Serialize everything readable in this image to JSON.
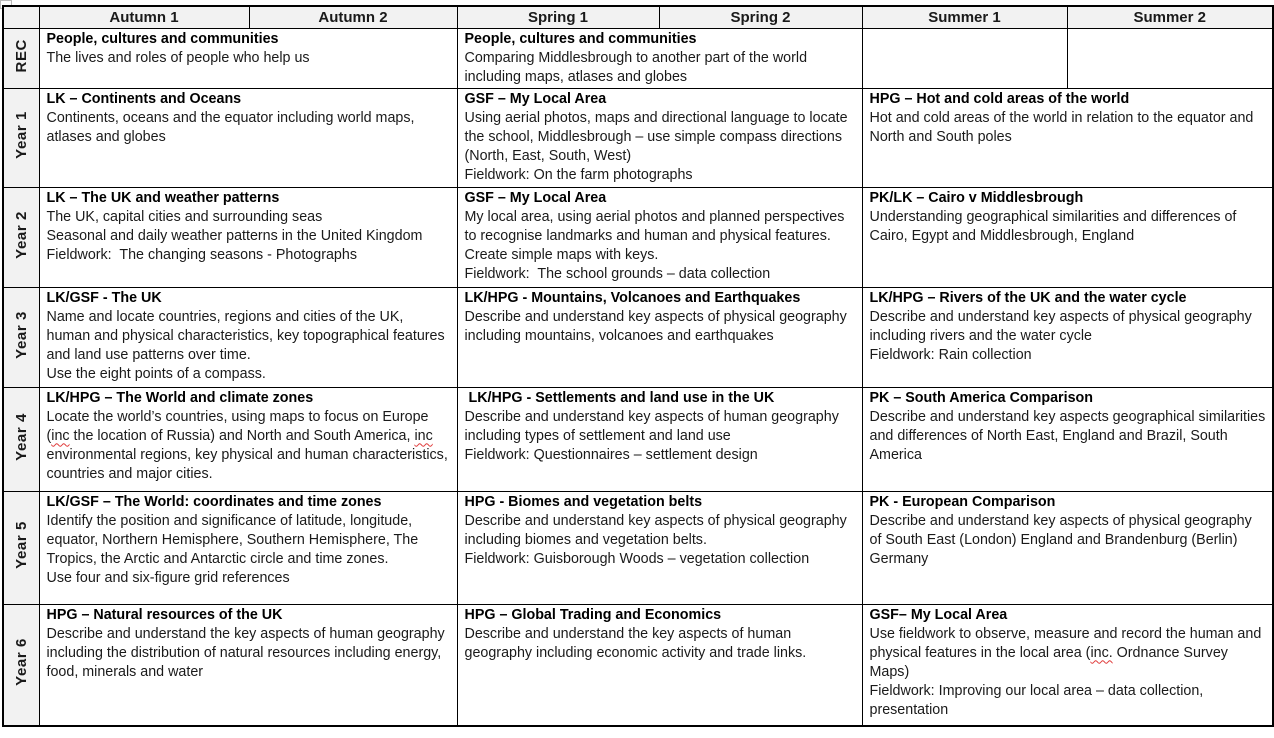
{
  "colors": {
    "header_bg": "#f2f2f2",
    "border": "#000000",
    "squiggle": "#e03b3b"
  },
  "spellcheck_flagged_word": "inc",
  "table": {
    "terms": [
      "Autumn 1",
      "Autumn 2",
      "Spring 1",
      "Spring 2",
      "Summer 1",
      "Summer 2"
    ],
    "rows": [
      {
        "year": "REC",
        "cells": [
          {
            "span": 2,
            "title": "People, cultures and communities",
            "lines": [
              "The lives and roles of people who help us"
            ]
          },
          {
            "span": 2,
            "title": "People, cultures and communities",
            "lines": [
              "Comparing Middlesbrough to another part of the world including maps, atlases and globes"
            ]
          },
          {
            "span": 1,
            "title": "",
            "lines": []
          },
          {
            "span": 1,
            "title": "",
            "lines": []
          }
        ]
      },
      {
        "year": "Year 1",
        "cells": [
          {
            "span": 2,
            "title": "LK – Continents and Oceans",
            "lines": [
              "Continents, oceans and the equator including world maps, atlases and globes"
            ]
          },
          {
            "span": 2,
            "title": "GSF – My Local Area",
            "lines": [
              "Using aerial photos, maps and directional language to locate the school, Middlesbrough – use simple compass directions (North, East, South, West)",
              "Fieldwork: On the farm photographs"
            ]
          },
          {
            "span": 2,
            "title": "HPG – Hot and cold areas of the world",
            "lines": [
              "Hot and cold areas of the world in relation to the equator and North and South poles"
            ]
          }
        ]
      },
      {
        "year": "Year 2",
        "cells": [
          {
            "span": 2,
            "title": "LK – The UK and weather patterns",
            "lines": [
              "The UK, capital cities and surrounding seas",
              "Seasonal and daily weather patterns in the United Kingdom",
              "Fieldwork:  The changing seasons - Photographs"
            ]
          },
          {
            "span": 2,
            "title": "GSF – My Local Area",
            "lines": [
              "My local area, using aerial photos and planned perspectives to recognise landmarks and human and physical features. Create simple maps with keys.",
              "Fieldwork:  The school grounds – data collection"
            ]
          },
          {
            "span": 2,
            "title": "PK/LK – Cairo v Middlesbrough",
            "lines": [
              "Understanding geographical similarities and differences of Cairo, Egypt and Middlesbrough, England"
            ]
          }
        ]
      },
      {
        "year": "Year 3",
        "cells": [
          {
            "span": 2,
            "title": "LK/GSF - The UK",
            "lines": [
              "Name and locate countries, regions and cities of the UK, human and physical characteristics, key topographical features and land use patterns over time.",
              "Use the eight points of a compass."
            ]
          },
          {
            "span": 2,
            "title": "LK/HPG - Mountains, Volcanoes and Earthquakes",
            "lines": [
              "Describe and understand key aspects of physical geography including mountains, volcanoes and earthquakes"
            ]
          },
          {
            "span": 2,
            "title": "LK/HPG – Rivers of the UK and the water cycle",
            "lines": [
              "Describe and understand key aspects of physical geography including rivers and the water cycle",
              "Fieldwork: Rain collection"
            ]
          }
        ]
      },
      {
        "year": "Year 4",
        "cells": [
          {
            "span": 2,
            "title": "LK/HPG – The World and climate zones",
            "lines": [
              "Locate the world’s countries, using maps to focus on Europe (inc the location of Russia) and North and South America, inc environmental regions, key physical and human characteristics, countries and major cities."
            ]
          },
          {
            "span": 2,
            "title": " LK/HPG - Settlements and land use in the UK",
            "lines": [
              "Describe and understand key aspects of human geography including types of settlement and land use",
              "Fieldwork: Questionnaires – settlement design"
            ]
          },
          {
            "span": 2,
            "title": "PK – South America Comparison",
            "lines": [
              "Describe and understand key aspects geographical similarities and differences of North East, England and Brazil, South America"
            ]
          }
        ]
      },
      {
        "year": "Year 5",
        "cells": [
          {
            "span": 2,
            "title": "LK/GSF – The World: coordinates and time zones",
            "lines": [
              "Identify the position and significance of latitude, longitude, equator, Northern Hemisphere, Southern Hemisphere, The Tropics, the Arctic and Antarctic circle and time zones.",
              "Use four and six-figure grid references"
            ]
          },
          {
            "span": 2,
            "title": "HPG - Biomes and vegetation belts",
            "lines": [
              "Describe and understand key aspects of physical geography including biomes and vegetation belts.",
              "Fieldwork: Guisborough Woods – vegetation collection"
            ]
          },
          {
            "span": 2,
            "title": "PK - European Comparison",
            "lines": [
              "Describe and understand key aspects of physical geography of South East (London) England and Brandenburg (Berlin) Germany"
            ]
          }
        ]
      },
      {
        "year": "Year 6",
        "cells": [
          {
            "span": 2,
            "title": "HPG – Natural resources of the UK",
            "lines": [
              "Describe and understand the key aspects of human geography including the distribution of natural resources including energy, food, minerals and water"
            ]
          },
          {
            "span": 2,
            "title": "HPG – Global Trading and Economics",
            "lines": [
              "Describe and understand the key aspects of human geography including economic activity and trade links."
            ]
          },
          {
            "span": 2,
            "title": "GSF– My Local Area",
            "lines": [
              "Use fieldwork to observe, measure and record the human and physical features in the local area (inc. Ordnance Survey Maps)",
              "Fieldwork: Improving our local area – data collection, presentation"
            ]
          }
        ]
      }
    ]
  }
}
